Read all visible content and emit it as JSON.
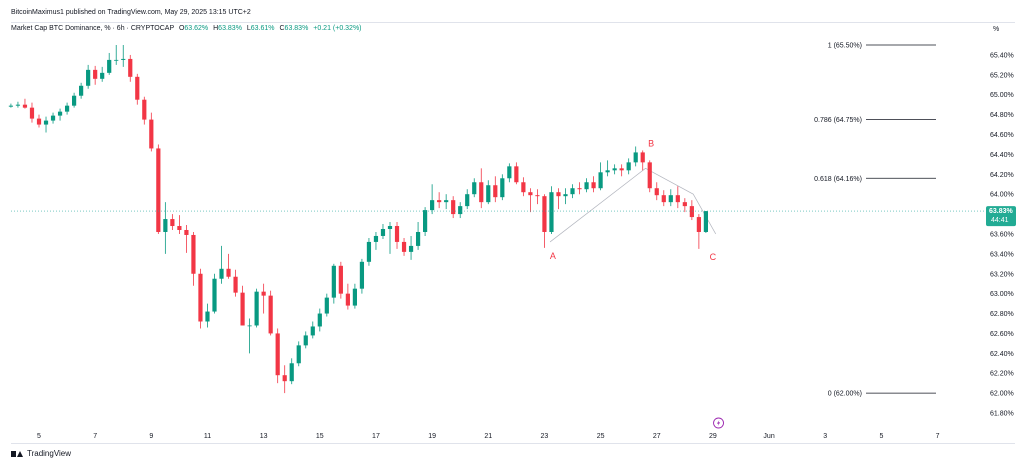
{
  "header": {
    "published": "BitcoinMaximus1 published on TradingView.com, May 29, 2025 13:15 UTC+2"
  },
  "symbol": {
    "name": "Market Cap BTC Dominance, % · 6h · CRYPTOCAP",
    "o_label": "O",
    "o_value": "63.62%",
    "h_label": "H",
    "h_value": "63.83%",
    "l_label": "L",
    "l_value": "63.61%",
    "c_label": "C",
    "c_value": "63.83%",
    "change": "+0.21 (+0.32%)"
  },
  "footer": {
    "brand": "TradingView"
  },
  "colors": {
    "up": "#089981",
    "down": "#f23645",
    "fib": "#131722",
    "wave": "#f23645",
    "crosshair": "#2aa9a0",
    "badge": "#22ab94"
  },
  "chart_data": {
    "type": "candlestick",
    "title": "Market Cap BTC Dominance, %",
    "unit_label": "%",
    "x_ticks": [
      "5",
      "7",
      "9",
      "11",
      "13",
      "15",
      "17",
      "19",
      "21",
      "23",
      "25",
      "27",
      "29",
      "Jun",
      "3",
      "5",
      "7"
    ],
    "y_ticks": [
      "65.40%",
      "65.20%",
      "65.00%",
      "64.80%",
      "64.60%",
      "64.40%",
      "64.20%",
      "64.00%",
      "63.80%",
      "63.60%",
      "63.40%",
      "63.20%",
      "63.00%",
      "62.80%",
      "62.60%",
      "62.40%",
      "62.20%",
      "62.00%",
      "61.80%"
    ],
    "ylim": [
      61.72,
      65.62
    ],
    "grid": false,
    "current_price": {
      "value": 63.83,
      "label": "63.83%",
      "countdown": "44:41"
    },
    "fib_levels": [
      {
        "ratio": "1",
        "label": "1 (65.50%)",
        "value": 65.5
      },
      {
        "ratio": "0.786",
        "label": "0.786 (64.75%)",
        "value": 64.75
      },
      {
        "ratio": "0.618",
        "label": "0.618 (64.16%)",
        "value": 64.16
      },
      {
        "ratio": "0",
        "label": "0 (62.00%)",
        "value": 62.0
      }
    ],
    "wave_labels": [
      {
        "text": "A",
        "day": 23.3,
        "value": 63.38
      },
      {
        "text": "B",
        "day": 26.8,
        "value": 64.51
      },
      {
        "text": "C",
        "day": 29.0,
        "value": 63.37
      }
    ],
    "wave_path": [
      {
        "day": 23.2,
        "value": 63.52
      },
      {
        "day": 26.6,
        "value": 64.26
      },
      {
        "day": 28.3,
        "value": 64.0
      },
      {
        "day": 29.1,
        "value": 63.6
      }
    ],
    "candles": [
      [
        4.0,
        64.88,
        64.91,
        64.87,
        64.89
      ],
      [
        4.25,
        64.89,
        64.93,
        64.87,
        64.9
      ],
      [
        4.5,
        64.9,
        64.96,
        64.86,
        64.87
      ],
      [
        4.75,
        64.87,
        64.92,
        64.72,
        64.76
      ],
      [
        5.0,
        64.76,
        64.8,
        64.67,
        64.7
      ],
      [
        5.25,
        64.7,
        64.78,
        64.62,
        64.74
      ],
      [
        5.5,
        64.74,
        64.82,
        64.71,
        64.79
      ],
      [
        5.75,
        64.79,
        64.86,
        64.74,
        64.83
      ],
      [
        6.0,
        64.83,
        64.92,
        64.8,
        64.89
      ],
      [
        6.25,
        64.89,
        65.02,
        64.87,
        64.99
      ],
      [
        6.5,
        64.99,
        65.12,
        64.96,
        65.09
      ],
      [
        6.75,
        65.09,
        65.3,
        65.06,
        65.25
      ],
      [
        7.0,
        65.25,
        65.29,
        65.1,
        65.16
      ],
      [
        7.25,
        65.16,
        65.28,
        65.13,
        65.22
      ],
      [
        7.5,
        65.22,
        65.42,
        65.2,
        65.35
      ],
      [
        7.75,
        65.35,
        65.5,
        65.3,
        65.35
      ],
      [
        8.0,
        65.35,
        65.5,
        65.28,
        65.36
      ],
      [
        8.25,
        65.36,
        65.4,
        65.13,
        65.18
      ],
      [
        8.5,
        65.18,
        65.21,
        64.9,
        64.95
      ],
      [
        8.75,
        64.95,
        64.98,
        64.7,
        64.75
      ],
      [
        9.0,
        64.75,
        64.82,
        64.43,
        64.46
      ],
      [
        9.25,
        64.46,
        64.5,
        63.6,
        63.62
      ],
      [
        9.5,
        63.62,
        63.92,
        63.4,
        63.75
      ],
      [
        9.75,
        63.75,
        63.8,
        63.64,
        63.68
      ],
      [
        10.0,
        63.68,
        63.79,
        63.6,
        63.64
      ],
      [
        10.25,
        63.64,
        63.69,
        63.41,
        63.59
      ],
      [
        10.5,
        63.59,
        63.62,
        63.08,
        63.2
      ],
      [
        10.75,
        63.2,
        63.25,
        62.65,
        62.72
      ],
      [
        11.0,
        62.72,
        62.9,
        62.66,
        62.82
      ],
      [
        11.25,
        62.82,
        63.2,
        62.8,
        63.15
      ],
      [
        11.5,
        63.15,
        63.48,
        63.1,
        63.25
      ],
      [
        11.75,
        63.25,
        63.4,
        63.15,
        63.17
      ],
      [
        12.0,
        63.17,
        63.24,
        62.97,
        63.01
      ],
      [
        12.25,
        63.01,
        63.08,
        62.68,
        62.68
      ],
      [
        12.5,
        62.68,
        62.75,
        62.4,
        62.68
      ],
      [
        12.75,
        62.68,
        63.05,
        62.66,
        63.02
      ],
      [
        13.0,
        63.02,
        63.1,
        62.8,
        62.98
      ],
      [
        13.25,
        62.98,
        63.03,
        62.58,
        62.6
      ],
      [
        13.5,
        62.6,
        62.65,
        62.1,
        62.18
      ],
      [
        13.75,
        62.18,
        62.28,
        62.0,
        62.12
      ],
      [
        14.0,
        62.12,
        62.35,
        62.09,
        62.3
      ],
      [
        14.25,
        62.3,
        62.52,
        62.27,
        62.48
      ],
      [
        14.5,
        62.48,
        62.62,
        62.45,
        62.58
      ],
      [
        14.75,
        62.58,
        62.72,
        62.55,
        62.67
      ],
      [
        15.0,
        62.67,
        62.85,
        62.62,
        62.8
      ],
      [
        15.25,
        62.8,
        63.0,
        62.77,
        62.96
      ],
      [
        15.5,
        62.96,
        63.3,
        62.9,
        63.28
      ],
      [
        15.75,
        63.28,
        63.32,
        62.95,
        63.0
      ],
      [
        16.0,
        63.0,
        63.1,
        62.84,
        62.88
      ],
      [
        16.25,
        62.88,
        63.1,
        62.85,
        63.05
      ],
      [
        16.5,
        63.05,
        63.35,
        63.0,
        63.32
      ],
      [
        16.75,
        63.32,
        63.56,
        63.28,
        63.52
      ],
      [
        17.0,
        63.52,
        63.62,
        63.44,
        63.58
      ],
      [
        17.25,
        63.58,
        63.7,
        63.55,
        63.65
      ],
      [
        17.5,
        63.65,
        63.72,
        63.4,
        63.68
      ],
      [
        17.75,
        63.68,
        63.72,
        63.45,
        63.52
      ],
      [
        18.0,
        63.52,
        63.56,
        63.38,
        63.42
      ],
      [
        18.25,
        63.42,
        63.58,
        63.34,
        63.48
      ],
      [
        18.5,
        63.48,
        63.72,
        63.44,
        63.62
      ],
      [
        18.75,
        63.62,
        63.87,
        63.58,
        63.84
      ],
      [
        19.0,
        63.84,
        64.1,
        63.8,
        63.94
      ],
      [
        19.25,
        63.94,
        64.02,
        63.86,
        63.92
      ],
      [
        19.5,
        63.92,
        64.0,
        63.85,
        63.94
      ],
      [
        19.75,
        63.94,
        63.98,
        63.76,
        63.8
      ],
      [
        20.0,
        63.8,
        63.92,
        63.76,
        63.88
      ],
      [
        20.25,
        63.88,
        64.05,
        63.85,
        64.0
      ],
      [
        20.5,
        64.0,
        64.16,
        63.97,
        64.12
      ],
      [
        20.75,
        64.12,
        64.26,
        63.86,
        63.92
      ],
      [
        21.0,
        63.92,
        64.14,
        63.9,
        64.09
      ],
      [
        21.25,
        64.09,
        64.18,
        63.92,
        63.97
      ],
      [
        21.5,
        63.97,
        64.2,
        63.94,
        64.16
      ],
      [
        21.75,
        64.16,
        64.31,
        64.12,
        64.28
      ],
      [
        22.0,
        64.28,
        64.32,
        64.1,
        64.12
      ],
      [
        22.25,
        64.12,
        64.17,
        63.98,
        64.02
      ],
      [
        22.5,
        64.02,
        64.06,
        63.82,
        63.99
      ],
      [
        22.75,
        63.99,
        64.05,
        63.9,
        63.98
      ],
      [
        23.0,
        63.98,
        64.0,
        63.46,
        63.62
      ],
      [
        23.25,
        63.62,
        64.08,
        63.6,
        64.02
      ],
      [
        23.5,
        64.02,
        64.06,
        63.85,
        63.98
      ],
      [
        23.75,
        63.98,
        64.06,
        63.9,
        64.0
      ],
      [
        24.0,
        64.0,
        64.1,
        63.96,
        64.06
      ],
      [
        24.25,
        64.06,
        64.12,
        64.0,
        64.05
      ],
      [
        24.5,
        64.05,
        64.16,
        64.02,
        64.12
      ],
      [
        24.75,
        64.12,
        64.18,
        64.02,
        64.06
      ],
      [
        25.0,
        64.06,
        64.32,
        64.04,
        64.22
      ],
      [
        25.25,
        64.22,
        64.34,
        64.18,
        64.24
      ],
      [
        25.5,
        64.24,
        64.3,
        64.2,
        64.26
      ],
      [
        25.75,
        64.26,
        64.3,
        64.18,
        64.24
      ],
      [
        26.0,
        64.24,
        64.36,
        64.2,
        64.32
      ],
      [
        26.25,
        64.32,
        64.48,
        64.28,
        64.42
      ],
      [
        26.5,
        64.42,
        64.44,
        64.24,
        64.32
      ],
      [
        26.75,
        64.32,
        64.34,
        64.02,
        64.06
      ],
      [
        27.0,
        64.06,
        64.12,
        63.94,
        63.99
      ],
      [
        27.25,
        63.99,
        64.04,
        63.88,
        63.92
      ],
      [
        27.5,
        63.92,
        64.05,
        63.88,
        63.99
      ],
      [
        27.75,
        63.99,
        64.08,
        63.86,
        63.92
      ],
      [
        28.0,
        63.92,
        63.96,
        63.82,
        63.88
      ],
      [
        28.25,
        63.88,
        63.94,
        63.74,
        63.77
      ],
      [
        28.5,
        63.77,
        63.8,
        63.45,
        63.62
      ],
      [
        28.75,
        63.62,
        63.83,
        63.61,
        63.83
      ]
    ]
  }
}
